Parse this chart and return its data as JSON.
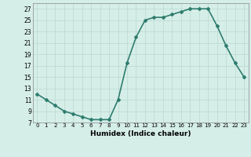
{
  "x": [
    0,
    1,
    2,
    3,
    4,
    5,
    6,
    7,
    8,
    9,
    10,
    11,
    12,
    13,
    14,
    15,
    16,
    17,
    18,
    19,
    20,
    21,
    22,
    23
  ],
  "y": [
    12,
    11,
    10,
    9,
    8.5,
    8,
    7.5,
    7.5,
    7.5,
    11,
    17.5,
    22,
    25,
    25.5,
    25.5,
    26,
    26.5,
    27,
    27,
    27,
    24,
    20.5,
    17.5,
    15
  ],
  "line_color": "#2e7d6e",
  "marker": "D",
  "marker_size": 2.0,
  "xlabel": "Humidex (Indice chaleur)",
  "xlim": [
    -0.5,
    23.5
  ],
  "ylim": [
    7,
    28
  ],
  "yticks": [
    7,
    9,
    11,
    13,
    15,
    17,
    19,
    21,
    23,
    25,
    27
  ],
  "xticks": [
    0,
    1,
    2,
    3,
    4,
    5,
    6,
    7,
    8,
    9,
    10,
    11,
    12,
    13,
    14,
    15,
    16,
    17,
    18,
    19,
    20,
    21,
    22,
    23
  ],
  "xtick_labels": [
    "0",
    "1",
    "2",
    "3",
    "4",
    "5",
    "6",
    "7",
    "8",
    "9",
    "10",
    "11",
    "12",
    "13",
    "14",
    "15",
    "16",
    "17",
    "18",
    "19",
    "20",
    "21",
    "22",
    "23"
  ],
  "background_color": "#d6eee8",
  "grid_color": "#b8d8d0",
  "linewidth": 1.2
}
